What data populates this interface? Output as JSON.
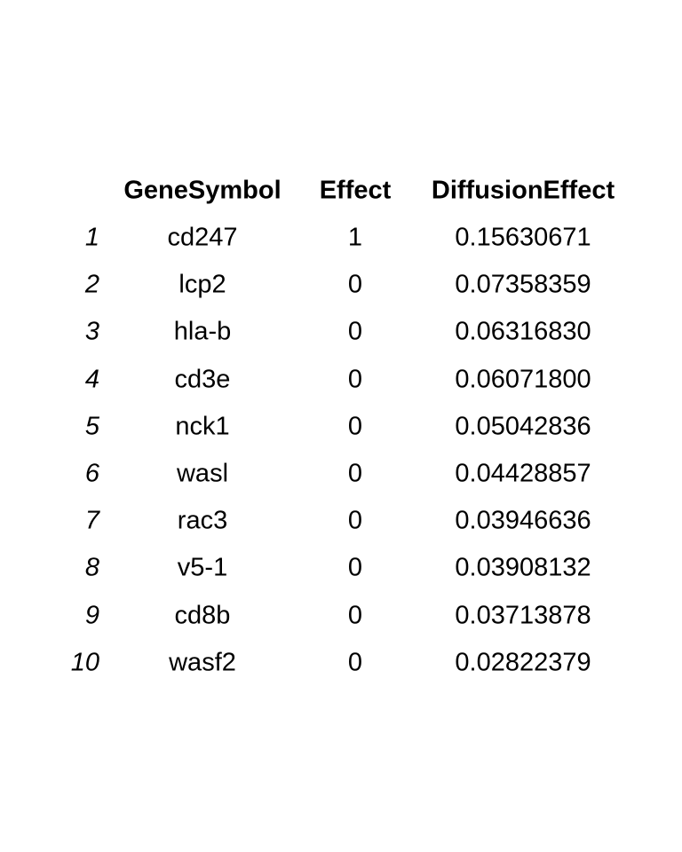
{
  "table": {
    "columns": [
      "GeneSymbol",
      "Effect",
      "DiffusionEffect"
    ],
    "rows": [
      {
        "name": "1",
        "gene": "cd247",
        "effect": "1",
        "diffusion": "0.15630671"
      },
      {
        "name": "2",
        "gene": "lcp2",
        "effect": "0",
        "diffusion": "0.07358359"
      },
      {
        "name": "3",
        "gene": "hla-b",
        "effect": "0",
        "diffusion": "0.06316830"
      },
      {
        "name": "4",
        "gene": "cd3e",
        "effect": "0",
        "diffusion": "0.06071800"
      },
      {
        "name": "5",
        "gene": "nck1",
        "effect": "0",
        "diffusion": "0.05042836"
      },
      {
        "name": "6",
        "gene": "wasl",
        "effect": "0",
        "diffusion": "0.04428857"
      },
      {
        "name": "7",
        "gene": "rac3",
        "effect": "0",
        "diffusion": "0.03946636"
      },
      {
        "name": "8",
        "gene": "v5-1",
        "effect": "0",
        "diffusion": "0.03908132"
      },
      {
        "name": "9",
        "gene": "cd8b",
        "effect": "0",
        "diffusion": "0.03713878"
      },
      {
        "name": "10",
        "gene": "wasf2",
        "effect": "0",
        "diffusion": "0.02822379"
      }
    ]
  }
}
